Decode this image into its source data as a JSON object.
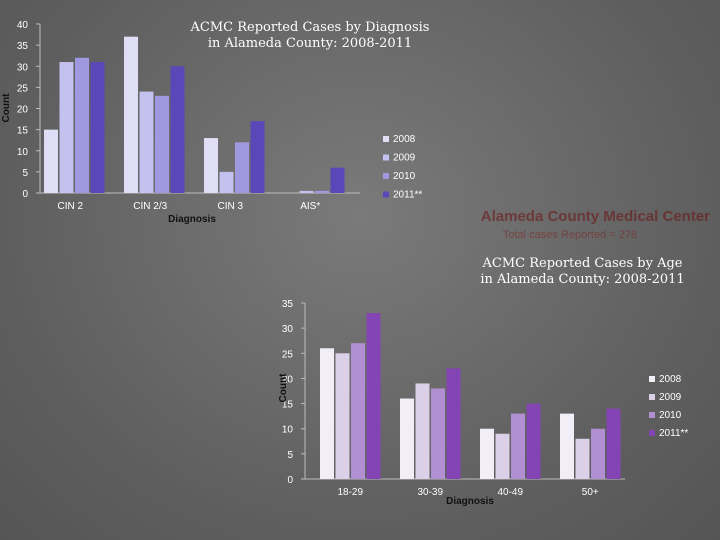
{
  "org": {
    "name": "Alameda County Medical Center",
    "subtitle": "Total cases Reported = 278"
  },
  "chart_data": [
    {
      "type": "bar",
      "title_line1": "ACMC Reported Cases by Diagnosis",
      "title_line2": "in Alameda County: 2008-2011",
      "xlabel": "Diagnosis",
      "ylabel": "Count",
      "ylim": [
        0,
        40
      ],
      "yticks": [
        0,
        5,
        10,
        15,
        20,
        25,
        30,
        35,
        40
      ],
      "categories": [
        "CIN 2",
        "CIN 2/3",
        "CIN 3",
        "AIS*"
      ],
      "legend_position": "right",
      "series": [
        {
          "name": "2008",
          "color": "#e0def6",
          "values": [
            15,
            37,
            13,
            0
          ]
        },
        {
          "name": "2009",
          "color": "#c4c1ef",
          "values": [
            31,
            24,
            5,
            0.5
          ]
        },
        {
          "name": "2010",
          "color": "#9f99e0",
          "values": [
            32,
            23,
            12,
            0.5
          ]
        },
        {
          "name": "2011**",
          "color": "#5a47b8",
          "values": [
            31,
            30,
            17,
            6
          ]
        }
      ]
    },
    {
      "type": "bar",
      "title_line1": "ACMC Reported Cases by Age",
      "title_line2": "in Alameda County: 2008-2011",
      "xlabel": "Diagnosis",
      "ylabel": "Count",
      "ylim": [
        0,
        35
      ],
      "yticks": [
        0,
        5,
        10,
        15,
        20,
        25,
        30,
        35
      ],
      "categories": [
        "18-29",
        "30-39",
        "40-49",
        "50+"
      ],
      "legend_position": "right",
      "series": [
        {
          "name": "2008",
          "color": "#f2eef7",
          "values": [
            26,
            16,
            10,
            13
          ]
        },
        {
          "name": "2009",
          "color": "#dccfe8",
          "values": [
            25,
            19,
            9,
            8
          ]
        },
        {
          "name": "2010",
          "color": "#b28fd0",
          "values": [
            27,
            18,
            13,
            10
          ]
        },
        {
          "name": "2011**",
          "color": "#8245b3",
          "values": [
            33,
            22,
            15,
            14
          ]
        }
      ]
    }
  ]
}
